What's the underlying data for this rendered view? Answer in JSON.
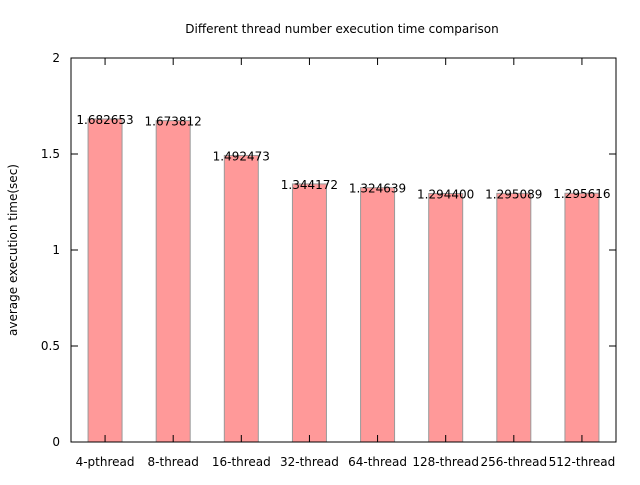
{
  "chart_data": {
    "type": "bar",
    "title": "Different thread number execution time comparison",
    "xlabel": "",
    "ylabel": "average execution time(sec)",
    "categories": [
      "4-pthread",
      "8-thread",
      "16-thread",
      "32-thread",
      "64-thread",
      "128-thread",
      "256-thread",
      "512-thread"
    ],
    "values": [
      1.682653,
      1.673812,
      1.492473,
      1.344172,
      1.324639,
      1.2944,
      1.295089,
      1.295616
    ],
    "value_labels": [
      "1.682653",
      "1.673812",
      "1.492473",
      "1.344172",
      "1.324639",
      "1.294400",
      "1.295089",
      "1.295616"
    ],
    "ylim": [
      0,
      2
    ],
    "yticks": [
      0,
      0.5,
      1,
      1.5,
      2
    ],
    "ytick_labels": [
      "0",
      "0.5",
      "1",
      "1.5",
      "2"
    ],
    "grid": false,
    "colors": {
      "bar_fill": "#ff9999",
      "bar_stroke": "#9a9a9a",
      "frame": "#000000"
    }
  }
}
